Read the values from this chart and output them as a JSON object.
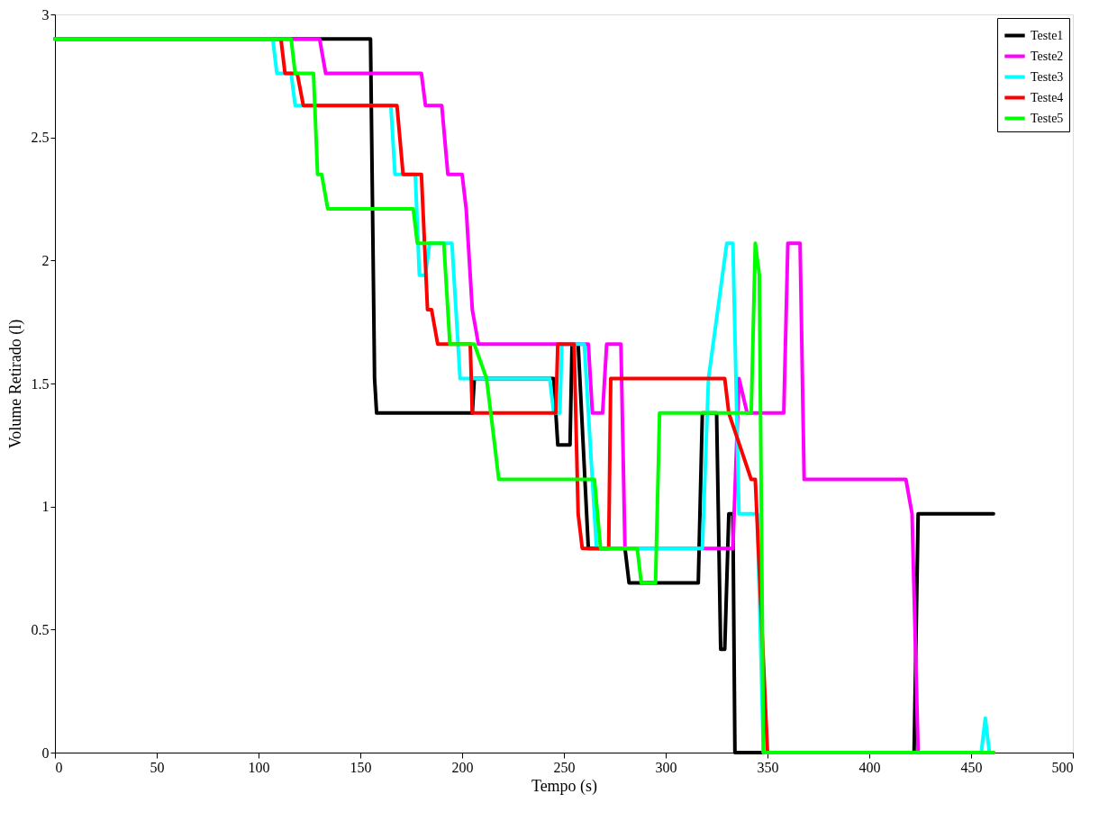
{
  "chart_data": {
    "type": "line",
    "xlabel": "Tempo (s)",
    "ylabel": "Volume Retirado (l)",
    "xlim": [
      0,
      500
    ],
    "xticks": [
      0,
      50,
      100,
      150,
      200,
      250,
      300,
      350,
      400,
      450,
      500
    ],
    "ylim": [
      0,
      3
    ],
    "yticks": [
      0,
      0.5,
      1,
      1.5,
      2,
      2.5,
      3
    ],
    "grid": false,
    "legend": "top right",
    "marker": "none",
    "line_style": "solid",
    "series": [
      {
        "name": "Teste1",
        "color": "#000000",
        "x": [
          0,
          155,
          157,
          158,
          205,
          206,
          245,
          247,
          253,
          254,
          257,
          262,
          280,
          282,
          316,
          318,
          325,
          327,
          329,
          331,
          333,
          334,
          422,
          424,
          461
        ],
        "values": [
          2.9,
          2.9,
          1.52,
          1.38,
          1.38,
          1.52,
          1.52,
          1.25,
          1.25,
          1.66,
          1.66,
          0.83,
          0.83,
          0.69,
          0.69,
          1.38,
          1.38,
          0.42,
          0.42,
          0.97,
          0.97,
          0,
          0,
          0.97,
          0.97
        ]
      },
      {
        "name": "Teste2",
        "color": "#ff00ff",
        "x": [
          0,
          130,
          133,
          180,
          182,
          190,
          193,
          200,
          202,
          205,
          208,
          262,
          264,
          269,
          271,
          278,
          280,
          333,
          336,
          340,
          358,
          360,
          366,
          368,
          418,
          421,
          424,
          460
        ],
        "values": [
          2.9,
          2.9,
          2.76,
          2.76,
          2.63,
          2.63,
          2.35,
          2.35,
          2.21,
          1.8,
          1.66,
          1.66,
          1.38,
          1.38,
          1.66,
          1.66,
          0.83,
          0.83,
          1.52,
          1.38,
          1.38,
          2.07,
          2.07,
          1.11,
          1.11,
          0.97,
          0,
          0
        ]
      },
      {
        "name": "Teste3",
        "color": "#00ffff",
        "x": [
          0,
          107,
          109,
          116,
          118,
          165,
          167,
          177,
          179,
          182,
          184,
          195,
          199,
          243,
          245,
          248,
          249,
          260,
          266,
          318,
          321,
          330,
          333,
          336,
          345,
          348,
          455,
          457,
          459,
          461
        ],
        "values": [
          2.9,
          2.9,
          2.76,
          2.76,
          2.63,
          2.63,
          2.35,
          2.35,
          1.94,
          1.94,
          2.07,
          2.07,
          1.52,
          1.52,
          1.38,
          1.38,
          1.66,
          1.66,
          0.83,
          0.83,
          1.52,
          2.07,
          2.07,
          0.97,
          0.97,
          0,
          0,
          0.14,
          0,
          0
        ]
      },
      {
        "name": "Teste4",
        "color": "#ff0000",
        "x": [
          0,
          111,
          113,
          119,
          122,
          168,
          171,
          180,
          183,
          185,
          188,
          204,
          205,
          246,
          247,
          255,
          257,
          259,
          272,
          273,
          329,
          331,
          342,
          344,
          350,
          461
        ],
        "values": [
          2.9,
          2.9,
          2.76,
          2.76,
          2.63,
          2.63,
          2.35,
          2.35,
          1.8,
          1.8,
          1.66,
          1.66,
          1.38,
          1.38,
          1.66,
          1.66,
          0.97,
          0.83,
          0.83,
          1.52,
          1.52,
          1.38,
          1.11,
          1.11,
          0,
          0
        ]
      },
      {
        "name": "Teste5",
        "color": "#00ff00",
        "x": [
          0,
          116,
          118,
          127,
          129,
          131,
          134,
          176,
          178,
          191,
          194,
          206,
          212,
          216,
          218,
          265,
          268,
          286,
          288,
          295,
          297,
          342,
          344,
          346,
          348,
          461
        ],
        "values": [
          2.9,
          2.9,
          2.76,
          2.76,
          2.35,
          2.35,
          2.21,
          2.21,
          2.07,
          2.07,
          1.66,
          1.66,
          1.52,
          1.25,
          1.11,
          1.11,
          0.83,
          0.83,
          0.69,
          0.69,
          1.38,
          1.38,
          2.07,
          1.94,
          0,
          0
        ]
      }
    ]
  }
}
